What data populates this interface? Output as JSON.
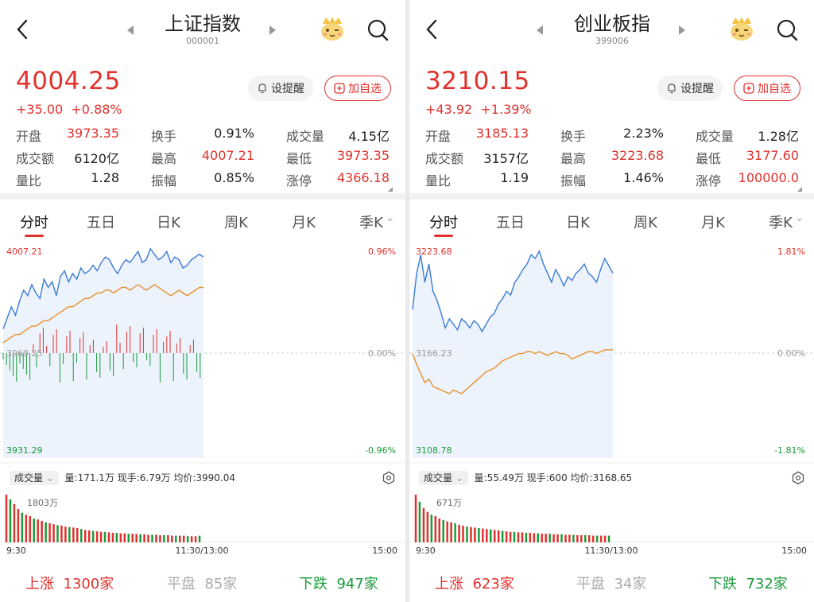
{
  "panels": [
    {
      "title": "上证指数",
      "code": "000001",
      "price": "4004.25",
      "change": "+35.00",
      "change_pct": "+0.88%",
      "alert_label": "设提醒",
      "fav_label": "加自选",
      "stats": [
        {
          "label": "开盘",
          "value": "3973.35",
          "color": "red"
        },
        {
          "label": "换手",
          "value": "0.91%",
          "color": "dark"
        },
        {
          "label": "成交量",
          "value": "4.15亿",
          "color": "dark"
        },
        {
          "label": "成交额",
          "value": "6120亿",
          "color": "dark"
        },
        {
          "label": "最高",
          "value": "4007.21",
          "color": "red"
        },
        {
          "label": "最低",
          "value": "3973.35",
          "color": "red"
        },
        {
          "label": "量比",
          "value": "1.28",
          "color": "dark"
        },
        {
          "label": "振幅",
          "value": "0.85%",
          "color": "dark"
        },
        {
          "label": "涨停",
          "value": "4366.18",
          "color": "red"
        }
      ],
      "tabs": [
        "分时",
        "五日",
        "日K",
        "周K",
        "月K",
        "季K"
      ],
      "chart": {
        "high_label": "4007.21",
        "high_pct": "0.96%",
        "mid_label": "3969.25",
        "mid_pct": "0.00%",
        "low_label": "3931.29",
        "low_pct": "-0.96%",
        "price_path": [
          3978,
          3982,
          3986,
          3983,
          3988,
          3992,
          3990,
          3994,
          3991,
          3989,
          3996,
          3993,
          3995,
          3990,
          3997,
          3999,
          3995,
          3998,
          3996,
          4000,
          3998,
          3999,
          4001,
          3999,
          4002,
          4004,
          4003,
          4000,
          3998,
          4001,
          4003,
          4002,
          4004,
          4006,
          4002,
          4003,
          4007,
          4005,
          4003,
          4004,
          4006,
          4002,
          4004,
          4003,
          4000,
          4001,
          4003,
          4004,
          4005,
          4004
        ],
        "avg_path": [
          3973,
          3974,
          3975,
          3976,
          3976,
          3977,
          3978,
          3979,
          3979,
          3980,
          3981,
          3981,
          3982,
          3983,
          3984,
          3985,
          3986,
          3986,
          3987,
          3988,
          3989,
          3989,
          3990,
          3991,
          3991,
          3992,
          3992,
          3991,
          3992,
          3993,
          3993,
          3992,
          3993,
          3994,
          3993,
          3992,
          3993,
          3994,
          3993,
          3992,
          3991,
          3990,
          3991,
          3992,
          3991,
          3990,
          3991,
          3992,
          3993,
          3993
        ],
        "y_min": 3931.29,
        "y_max": 4007.21,
        "vol_label": "成交量",
        "vol_stats": "量:171.1万  现手:6.79万  均价:3990.04",
        "vol_max_label": "1803万",
        "time_start": "9:30",
        "time_mid": "11:30/13:00",
        "time_end": "15:00",
        "volumes": [
          100,
          90,
          80,
          70,
          62,
          58,
          55,
          50,
          48,
          45,
          42,
          40,
          38,
          36,
          35,
          33,
          32,
          31,
          30,
          28,
          26,
          25,
          24,
          23,
          22,
          22,
          21,
          20,
          20,
          19,
          19,
          18,
          18,
          18,
          17,
          17,
          16,
          16,
          16,
          15,
          15,
          15,
          14,
          14,
          14,
          14,
          13,
          13,
          13,
          14
        ]
      },
      "breadth": {
        "up_label": "上涨",
        "up": "1300家",
        "flat_label": "平盘",
        "flat": "85家",
        "down_label": "下跌",
        "down": "947家"
      }
    },
    {
      "title": "创业板指",
      "code": "399006",
      "price": "3210.15",
      "change": "+43.92",
      "change_pct": "+1.39%",
      "alert_label": "设提醒",
      "fav_label": "加自选",
      "stats": [
        {
          "label": "开盘",
          "value": "3185.13",
          "color": "red"
        },
        {
          "label": "换手",
          "value": "2.23%",
          "color": "dark"
        },
        {
          "label": "成交量",
          "value": "1.28亿",
          "color": "dark"
        },
        {
          "label": "成交额",
          "value": "3157亿",
          "color": "dark"
        },
        {
          "label": "最高",
          "value": "3223.68",
          "color": "red"
        },
        {
          "label": "最低",
          "value": "3177.60",
          "color": "red"
        },
        {
          "label": "量比",
          "value": "1.19",
          "color": "dark"
        },
        {
          "label": "振幅",
          "value": "1.46%",
          "color": "dark"
        },
        {
          "label": "涨停",
          "value": "100000.0",
          "color": "red"
        }
      ],
      "tabs": [
        "分时",
        "五日",
        "日K",
        "周K",
        "月K",
        "季K"
      ],
      "chart": {
        "high_label": "3223.68",
        "high_pct": "1.81%",
        "mid_label": "3166.23",
        "mid_pct": "0.00%",
        "low_label": "3108.78",
        "low_pct": "-1.81%",
        "price_path": [
          3190,
          3210,
          3220,
          3205,
          3215,
          3200,
          3195,
          3188,
          3180,
          3185,
          3182,
          3179,
          3185,
          3183,
          3180,
          3184,
          3182,
          3178,
          3182,
          3186,
          3188,
          3193,
          3196,
          3200,
          3198,
          3205,
          3208,
          3212,
          3215,
          3220,
          3218,
          3222,
          3215,
          3210,
          3205,
          3212,
          3208,
          3203,
          3208,
          3206,
          3210,
          3212,
          3215,
          3210,
          3208,
          3205,
          3212,
          3218,
          3214,
          3210
        ],
        "avg_path": [
          3166,
          3160,
          3155,
          3150,
          3152,
          3148,
          3147,
          3146,
          3145,
          3144,
          3146,
          3145,
          3144,
          3146,
          3148,
          3150,
          3152,
          3154,
          3156,
          3157,
          3158,
          3160,
          3162,
          3163,
          3164,
          3165,
          3166,
          3166,
          3167,
          3167,
          3166,
          3167,
          3166,
          3165,
          3166,
          3167,
          3166,
          3166,
          3165,
          3163,
          3164,
          3165,
          3166,
          3167,
          3167,
          3166,
          3167,
          3168,
          3168,
          3168
        ],
        "y_min": 3108.78,
        "y_max": 3223.68,
        "vol_label": "成交量",
        "vol_stats": "量:55.49万  现手:600  均价:3168.65",
        "vol_max_label": "671万",
        "time_start": "9:30",
        "time_mid": "11:30/13:00",
        "time_end": "15:00",
        "volumes": [
          100,
          85,
          72,
          64,
          58,
          55,
          50,
          47,
          44,
          42,
          40,
          37,
          35,
          33,
          32,
          31,
          30,
          29,
          28,
          27,
          26,
          25,
          24,
          23,
          22,
          22,
          21,
          21,
          20,
          20,
          19,
          19,
          18,
          18,
          18,
          17,
          17,
          17,
          16,
          16,
          16,
          15,
          15,
          15,
          15,
          14,
          14,
          14,
          14,
          14
        ]
      },
      "breadth": {
        "up_label": "上涨",
        "up": "623家",
        "flat_label": "平盘",
        "flat": "34家",
        "down_label": "下跌",
        "down": "732家"
      }
    }
  ],
  "colors": {
    "up": "#e0312d",
    "down": "#1a9a3b",
    "price_line": "#3a7bd5",
    "avg_line": "#e8912d"
  }
}
